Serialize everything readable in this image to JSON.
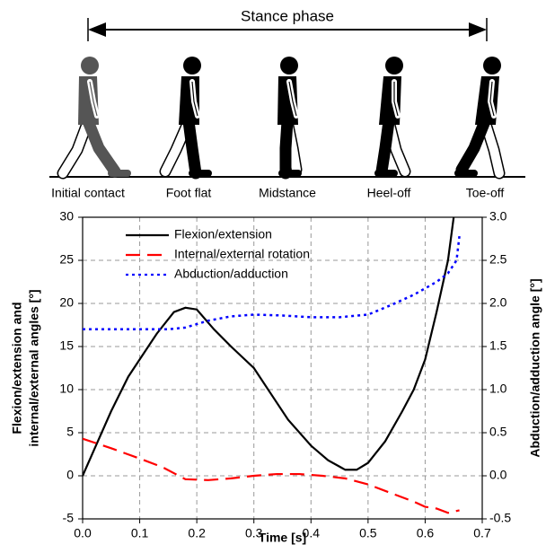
{
  "header": {
    "title": "Stance phase",
    "phases": [
      "Initial contact",
      "Foot flat",
      "Midstance",
      "Heel-off",
      "Toe-off"
    ]
  },
  "chart_data": {
    "type": "line",
    "xlabel": "Time [s]",
    "ylabel": [
      "Flexion/extension and",
      "internal/external angles [°]"
    ],
    "y2label": "Abduction/adduction angle [°]",
    "xlim": [
      0,
      0.7
    ],
    "xticks": [
      {
        "value": 0,
        "label": "0.0"
      },
      0.1,
      0.2,
      0.3,
      0.4,
      0.5,
      0.6,
      0.7
    ],
    "ylim": [
      -5,
      30
    ],
    "yticks": [
      -5,
      0,
      5,
      10,
      15,
      20,
      25,
      30
    ],
    "y2lim": [
      -0.5,
      3
    ],
    "y2ticks": [
      -0.5,
      {
        "value": 0,
        "label": "0.0"
      },
      0.5,
      {
        "value": 1,
        "label": "1.0"
      },
      1.5,
      {
        "value": 2,
        "label": "2.0"
      },
      2.5,
      {
        "value": 3,
        "label": "3.0"
      }
    ],
    "grid": true,
    "legend": "upper left",
    "series": [
      {
        "name": "Flexion/extension",
        "color": "#000000",
        "dash": "solid",
        "x": [
          0,
          0.02,
          0.05,
          0.08,
          0.1,
          0.13,
          0.16,
          0.18,
          0.2,
          0.23,
          0.26,
          0.3,
          0.33,
          0.36,
          0.4,
          0.43,
          0.46,
          0.48,
          0.5,
          0.53,
          0.56,
          0.58,
          0.6,
          0.62,
          0.64,
          0.65
        ],
        "values": [
          0,
          3,
          7.5,
          11.5,
          13.5,
          16.5,
          19,
          19.5,
          19.3,
          17,
          15,
          12.5,
          9.5,
          6.5,
          3.5,
          1.8,
          0.7,
          0.7,
          1.5,
          4,
          7.5,
          10,
          13.5,
          19,
          25,
          30
        ]
      },
      {
        "name": "Internal/external rotation",
        "color": "#ff0000",
        "dash": "dashed",
        "x": [
          0,
          0.05,
          0.1,
          0.14,
          0.18,
          0.22,
          0.26,
          0.3,
          0.34,
          0.38,
          0.42,
          0.46,
          0.5,
          0.54,
          0.58,
          0.6,
          0.62,
          0.64,
          0.66
        ],
        "values": [
          4.3,
          3.2,
          2,
          1,
          -0.4,
          -0.5,
          -0.3,
          0,
          0.2,
          0.2,
          0,
          -0.3,
          -1,
          -2,
          -3,
          -3.6,
          -3.8,
          -4.3,
          -4
        ]
      },
      {
        "name": "Abduction/adduction",
        "color": "#0000ff",
        "dash": "dotted",
        "axis": "y2",
        "x": [
          0,
          0.05,
          0.1,
          0.15,
          0.18,
          0.22,
          0.26,
          0.3,
          0.35,
          0.4,
          0.45,
          0.5,
          0.54,
          0.58,
          0.62,
          0.64,
          0.655,
          0.66
        ],
        "values": [
          1.7,
          1.7,
          1.7,
          1.7,
          1.72,
          1.8,
          1.85,
          1.87,
          1.86,
          1.84,
          1.84,
          1.87,
          1.98,
          2.1,
          2.25,
          2.35,
          2.5,
          2.78
        ]
      }
    ]
  }
}
